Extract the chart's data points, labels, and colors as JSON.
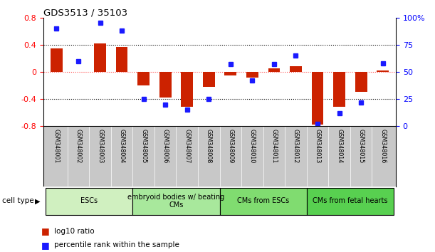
{
  "title": "GDS3513 / 35103",
  "samples": [
    "GSM348001",
    "GSM348002",
    "GSM348003",
    "GSM348004",
    "GSM348005",
    "GSM348006",
    "GSM348007",
    "GSM348008",
    "GSM348009",
    "GSM348010",
    "GSM348011",
    "GSM348012",
    "GSM348013",
    "GSM348014",
    "GSM348015",
    "GSM348016"
  ],
  "log10_ratio": [
    0.35,
    0.0,
    0.42,
    0.37,
    -0.2,
    -0.38,
    -0.52,
    -0.22,
    -0.05,
    -0.08,
    0.05,
    0.08,
    -0.78,
    -0.52,
    -0.3,
    0.02
  ],
  "percentile_rank": [
    90,
    60,
    95,
    88,
    25,
    20,
    15,
    25,
    57,
    42,
    57,
    65,
    2,
    12,
    22,
    58
  ],
  "cell_type_groups": [
    {
      "label": "ESCs",
      "start": 0,
      "end": 3,
      "color": "#d0f0c0"
    },
    {
      "label": "embryoid bodies w/ beating\nCMs",
      "start": 4,
      "end": 7,
      "color": "#a8e89c"
    },
    {
      "label": "CMs from ESCs",
      "start": 8,
      "end": 11,
      "color": "#80dc70"
    },
    {
      "label": "CMs from fetal hearts",
      "start": 12,
      "end": 15,
      "color": "#58d050"
    }
  ],
  "bar_color": "#cc2200",
  "dot_color": "#1a1aff",
  "ylim_left": [
    -0.8,
    0.8
  ],
  "ylim_right": [
    0,
    100
  ],
  "yticks_left": [
    -0.8,
    -0.4,
    0.0,
    0.4,
    0.8
  ],
  "ytick_labels_left": [
    "-0.8",
    "-0.4",
    "0",
    "0.4",
    "0.8"
  ],
  "yticks_right": [
    0,
    25,
    50,
    75,
    100
  ],
  "ytick_labels_right": [
    "0",
    "25",
    "50",
    "75",
    "100%"
  ],
  "grid_values": [
    0.4,
    0.0,
    -0.4
  ],
  "background_color": "#ffffff",
  "plot_bg_color": "#ffffff",
  "sample_label_bg": "#c8c8c8"
}
